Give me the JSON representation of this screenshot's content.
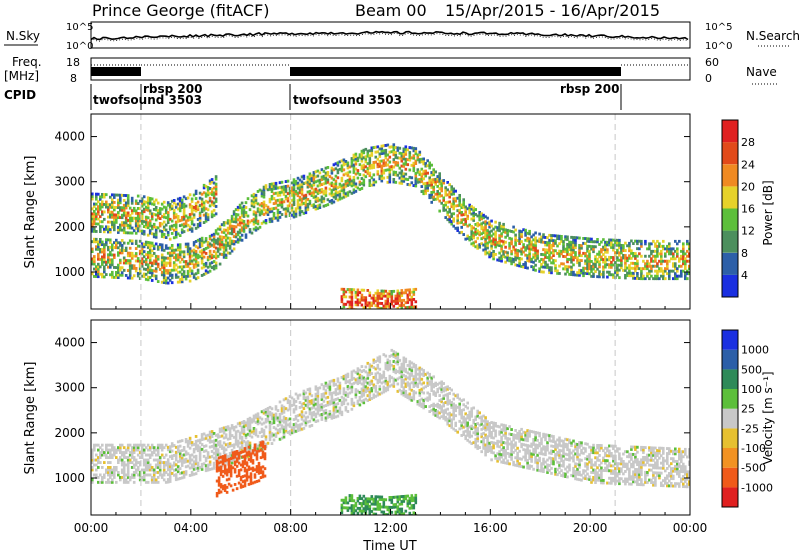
{
  "header": {
    "station": "Prince George (fitACF)",
    "beam": "Beam 00",
    "date_range": "15/Apr/2015 - 16/Apr/2015"
  },
  "labels": {
    "nsky": "N.Sky",
    "nsearch": "N.Search",
    "freq_line1": "Freq.",
    "freq_line2": "[MHz]",
    "nave": "Nave",
    "cpid": "CPID",
    "noise_tick_top": "10^5",
    "noise_tick_bottom": "10^0",
    "freq_tick_top": "18",
    "freq_tick_bottom": "8",
    "nave_tick_top": "60",
    "nave_tick_bottom": "0"
  },
  "cpid_segments": [
    {
      "label": "twofsound 3503",
      "start_hour": 0,
      "end_hour": 2
    },
    {
      "label": "rbsp 200",
      "start_hour": 2,
      "end_hour": 8
    },
    {
      "label": "twofsound 3503",
      "start_hour": 8,
      "end_hour": 21
    },
    {
      "label": "rbsp 200",
      "start_hour": 21,
      "end_hour": 24
    }
  ],
  "chart_data": [
    {
      "type": "heatmap",
      "title": "",
      "xlabel": "",
      "ylabel": "Slant Range [km]",
      "xlim": [
        0,
        24
      ],
      "ylim": [
        180,
        4500
      ],
      "y_ticks": [
        1000,
        2000,
        3000,
        4000
      ],
      "y_tick_labels": [
        "1000",
        "2000",
        "3000",
        "4000"
      ],
      "colorbar": {
        "label": "Power [dB]",
        "levels": [
          4,
          8,
          12,
          16,
          20,
          24,
          28
        ],
        "tick_labels": [
          "4",
          "8",
          "12",
          "16",
          "20",
          "24",
          "28"
        ],
        "colors": [
          "#1a2fe0",
          "#2c5fa8",
          "#4c8f5e",
          "#5cbf3a",
          "#e6d22a",
          "#f08a22",
          "#e24a1a",
          "#e02020"
        ]
      },
      "features_km_vs_UT": [
        {
          "name": "f-low",
          "points": [
            [
              0,
              1300
            ],
            [
              2,
              1250
            ],
            [
              3,
              1150
            ],
            [
              4,
              1200
            ],
            [
              5,
              1500
            ],
            [
              6,
              2100
            ],
            [
              7,
              2500
            ],
            [
              8,
              2600
            ],
            [
              9.5,
              2900
            ],
            [
              11,
              3300
            ],
            [
              12,
              3400
            ],
            [
              13,
              3300
            ],
            [
              14,
              2700
            ],
            [
              15,
              2100
            ],
            [
              16,
              1700
            ],
            [
              18,
              1400
            ],
            [
              20,
              1300
            ],
            [
              22,
              1250
            ],
            [
              24,
              1250
            ]
          ],
          "level": 20
        },
        {
          "name": "f-high",
          "points": [
            [
              0,
              2300
            ],
            [
              2,
              2250
            ],
            [
              3,
              2100
            ],
            [
              4,
              2300
            ],
            [
              5,
              2700
            ]
          ],
          "level": 20
        },
        {
          "name": "e-region",
          "points": [
            [
              10,
              350
            ],
            [
              12,
              300
            ],
            [
              13,
              350
            ]
          ],
          "level": 28
        }
      ]
    },
    {
      "type": "heatmap",
      "title": "",
      "xlabel": "Time UT",
      "ylabel": "Slant Range [km]",
      "xlim": [
        0,
        24
      ],
      "ylim": [
        180,
        4500
      ],
      "x_ticks": [
        0,
        4,
        8,
        12,
        16,
        20,
        24
      ],
      "x_tick_labels": [
        "00:00",
        "04:00",
        "08:00",
        "12:00",
        "16:00",
        "20:00",
        "00:00"
      ],
      "y_ticks": [
        1000,
        2000,
        3000,
        4000
      ],
      "y_tick_labels": [
        "1000",
        "2000",
        "3000",
        "4000"
      ],
      "colorbar": {
        "label": "Velocity [m s⁻¹]",
        "levels": [
          -1000,
          -500,
          -100,
          -25,
          25,
          100,
          500,
          1000
        ],
        "tick_labels": [
          "-1000",
          "-500",
          "-100",
          "-25",
          "25",
          "100",
          "500",
          "1000"
        ],
        "colors": [
          "#e02020",
          "#f05a1a",
          "#f29222",
          "#e6c030",
          "#c8c8c8",
          "#5cbf3a",
          "#2e8a58",
          "#2c5fa8",
          "#1a2fe0"
        ]
      },
      "features_km_vs_UT": [
        {
          "name": "ground-scatter",
          "points": [
            [
              0,
              1300
            ],
            [
              3,
              1300
            ],
            [
              6,
              1800
            ],
            [
              8,
              2400
            ],
            [
              10,
              2800
            ],
            [
              12,
              3400
            ],
            [
              14,
              2700
            ],
            [
              16,
              1800
            ],
            [
              20,
              1300
            ],
            [
              24,
              1200
            ]
          ],
          "level": 0
        },
        {
          "name": "fast-approach",
          "points": [
            [
              5,
              1000
            ],
            [
              6,
              1200
            ],
            [
              7,
              1400
            ]
          ],
          "level": -700
        },
        {
          "name": "e-region",
          "points": [
            [
              10,
              350
            ],
            [
              12,
              300
            ],
            [
              13,
              350
            ]
          ],
          "level": 100
        }
      ]
    }
  ]
}
